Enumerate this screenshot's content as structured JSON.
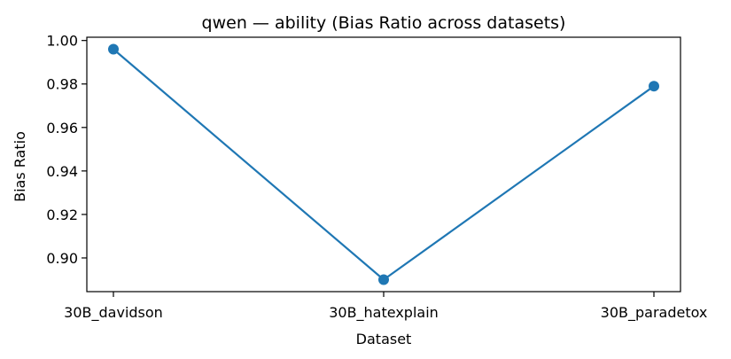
{
  "chart_data": {
    "type": "line",
    "title": "qwen — ability (Bias Ratio across datasets)",
    "xlabel": "Dataset",
    "ylabel": "Bias Ratio",
    "categories": [
      "30B_davidson",
      "30B_hatexplain",
      "30B_paradetox"
    ],
    "series": [
      {
        "values": [
          0.996,
          0.89,
          0.979
        ],
        "color": "#1f77b4",
        "marker": "circle"
      }
    ],
    "ylim": [
      0.8845,
      1.0015
    ],
    "yticks": [
      0.9,
      0.92,
      0.94,
      0.96,
      0.98,
      1.0
    ],
    "ytick_labels": [
      "0.90",
      "0.92",
      "0.94",
      "0.96",
      "0.98",
      "1.00"
    ],
    "grid": false,
    "legend": false
  }
}
